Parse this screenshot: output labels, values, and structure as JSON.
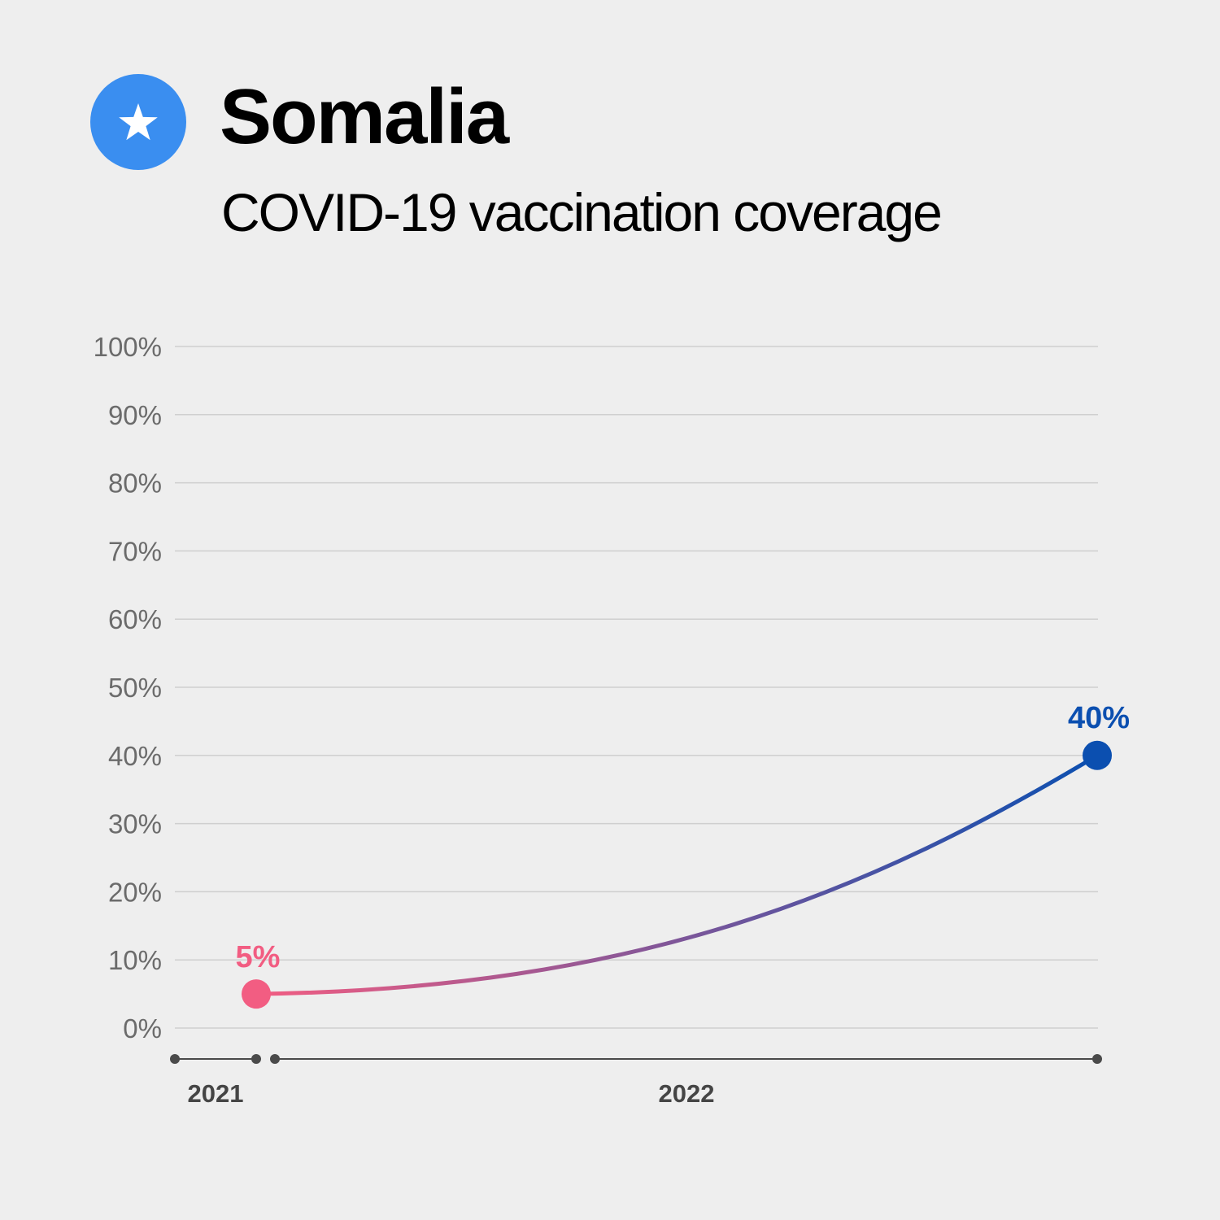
{
  "header": {
    "title": "Somalia",
    "subtitle": "COVID-19 vaccination coverage",
    "flag_icon": "somalia-flag-icon"
  },
  "colors": {
    "background": "#eeeeee",
    "flag_blue": "#3a8ef0",
    "start": "#f25d82",
    "end": "#0b4fb0",
    "grid": "#cfcfcf",
    "axis": "#4a4a4a"
  },
  "chart_data": {
    "type": "line",
    "title": "",
    "xlabel": "",
    "ylabel": "",
    "ylim": [
      0,
      100
    ],
    "yticks": [
      "0%",
      "10%",
      "20%",
      "30%",
      "40%",
      "50%",
      "60%",
      "70%",
      "80%",
      "90%",
      "100%"
    ],
    "xticks": [
      "2021",
      "2022"
    ],
    "grid": true,
    "legend": "none",
    "series": [
      {
        "points": [
          {
            "x": "2021-12",
            "y": 5
          },
          {
            "x": "2022-12",
            "y": 40
          }
        ],
        "labels": [
          "5%",
          "40%"
        ]
      }
    ]
  }
}
